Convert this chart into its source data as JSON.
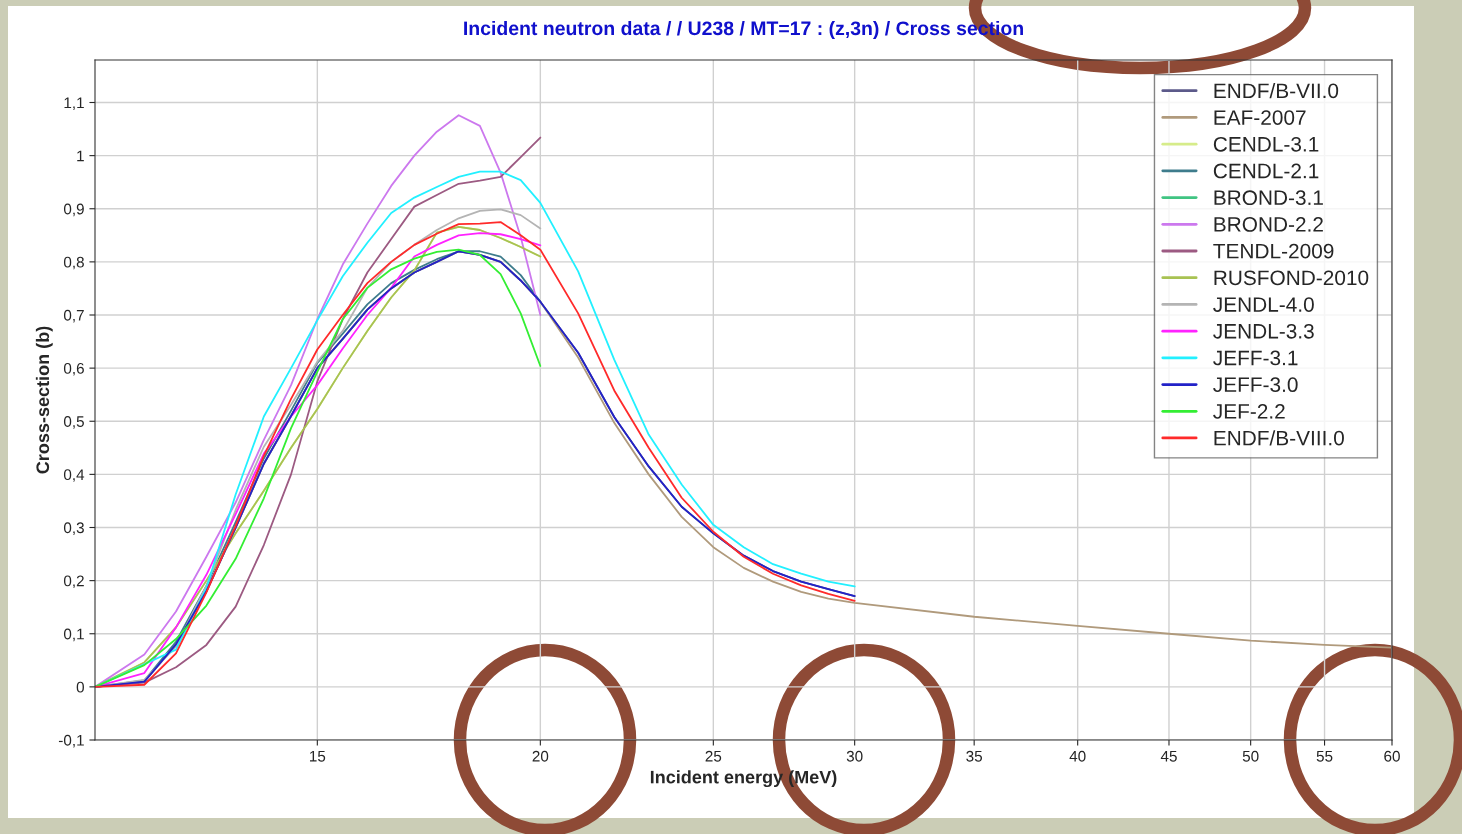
{
  "chart_data": {
    "type": "line",
    "title": "Incident neutron data / / U238 / MT=17 : (z,3n) / Cross section",
    "xlabel": "Incident energy (MeV)",
    "ylabel": "Cross-section (b)",
    "log": "x",
    "grid": true,
    "legend": "top right",
    "line_style": "solid",
    "xlim": [
      11.26,
      60
    ],
    "xticks": [
      15,
      20,
      25,
      30,
      35,
      40,
      45,
      50,
      55,
      60
    ],
    "ylim": [
      -0.1,
      1.18
    ],
    "yticks": [
      {
        "value": -0.1,
        "label": "-0,1"
      },
      0,
      {
        "value": 0.1,
        "label": "0,1"
      },
      {
        "value": 0.2,
        "label": "0,2"
      },
      {
        "value": 0.3,
        "label": "0,3"
      },
      {
        "value": 0.4,
        "label": "0,4"
      },
      {
        "value": 0.5,
        "label": "0,5"
      },
      {
        "value": 0.6,
        "label": "0,6"
      },
      {
        "value": 0.7,
        "label": "0,7"
      },
      {
        "value": 0.8,
        "label": "0,8"
      },
      {
        "value": 0.9,
        "label": "0,9"
      },
      1,
      {
        "value": 1.1,
        "label": "1,1"
      }
    ],
    "x": [
      11.26,
      12,
      12.5,
      13,
      13.5,
      14,
      14.5,
      15,
      15.5,
      16,
      16.5,
      17,
      17.5,
      18,
      18.5,
      19,
      19.5,
      20,
      21,
      22,
      23,
      24,
      25,
      26,
      27,
      28,
      29,
      30
    ],
    "series": [
      {
        "name": "ENDF/B-VII.0",
        "color": "#5c5a8a",
        "values": [
          0,
          0.01,
          0.08,
          0.18,
          0.3,
          0.42,
          0.51,
          0.6,
          0.655,
          0.71,
          0.75,
          0.78,
          0.8,
          0.82,
          0.813,
          0.8,
          0.765,
          0.725,
          0.629,
          0.508,
          0.415,
          0.339,
          0.289,
          0.247,
          0.218,
          0.198,
          0.184,
          0.171
        ]
      },
      {
        "name": "EAF-2007",
        "color": "#b09a7c",
        "x": [
          11.26,
          12,
          12.5,
          13,
          13.5,
          14,
          14.5,
          15,
          15.5,
          16,
          16.5,
          17,
          17.5,
          18,
          18.5,
          19,
          19.5,
          20,
          21,
          22,
          23,
          24,
          25,
          26,
          27,
          28,
          29,
          30,
          35,
          40,
          45,
          50,
          55,
          60
        ],
        "values": [
          0,
          0.01,
          0.08,
          0.18,
          0.3,
          0.42,
          0.51,
          0.6,
          0.655,
          0.71,
          0.75,
          0.78,
          0.8,
          0.82,
          0.813,
          0.8,
          0.765,
          0.725,
          0.62,
          0.497,
          0.4,
          0.32,
          0.263,
          0.224,
          0.198,
          0.179,
          0.166,
          0.158,
          0.132,
          0.115,
          0.1,
          0.087,
          0.079,
          0.074
        ]
      },
      {
        "name": "CENDL-3.1",
        "color": "#d6ec8a",
        "values": [
          0,
          0.046,
          0.112,
          0.2,
          0.289,
          0.369,
          0.45,
          0.523,
          0.6,
          0.67,
          0.733,
          0.784,
          0.855,
          0.866,
          0.86,
          0.845,
          0.828,
          0.81,
          null,
          null,
          null,
          null,
          null,
          null,
          null,
          null,
          null,
          null
        ]
      },
      {
        "name": "CENDL-2.1",
        "color": "#3e7c8c",
        "values": [
          0,
          0.012,
          0.085,
          0.19,
          0.31,
          0.43,
          0.52,
          0.61,
          0.665,
          0.72,
          0.76,
          0.785,
          0.805,
          0.82,
          0.82,
          0.81,
          0.775,
          0.725,
          null,
          null,
          null,
          null,
          null,
          null,
          null,
          null,
          null,
          null
        ]
      },
      {
        "name": "BROND-3.1",
        "color": "#40c482",
        "values": [
          null,
          null,
          null,
          null,
          null,
          null,
          null,
          null,
          null,
          null,
          null,
          null,
          null,
          null,
          null,
          null,
          null,
          null,
          null,
          null,
          null,
          null,
          null,
          null,
          null,
          null,
          null,
          null
        ]
      },
      {
        "name": "BROND-2.2",
        "color": "#cc78ee",
        "values": [
          0,
          0.061,
          0.142,
          0.245,
          0.347,
          0.465,
          0.568,
          0.692,
          0.795,
          0.872,
          0.943,
          1.0,
          1.045,
          1.076,
          1.056,
          0.968,
          0.847,
          0.7,
          null,
          null,
          null,
          null,
          null,
          null,
          null,
          null,
          null,
          null
        ]
      },
      {
        "name": "TENDL-2009",
        "color": "#9c5a82",
        "values": [
          0,
          0.008,
          0.037,
          0.079,
          0.151,
          0.267,
          0.4,
          0.575,
          0.692,
          0.78,
          0.843,
          0.904,
          0.926,
          0.947,
          0.953,
          0.96,
          0.997,
          1.034,
          null,
          null,
          null,
          null,
          null,
          null,
          null,
          null,
          null,
          null
        ]
      },
      {
        "name": "RUSFOND-2010",
        "color": "#a8c252",
        "values": [
          0,
          0.046,
          0.112,
          0.2,
          0.289,
          0.369,
          0.45,
          0.523,
          0.6,
          0.67,
          0.733,
          0.784,
          0.855,
          0.866,
          0.86,
          0.845,
          0.828,
          0.81,
          null,
          null,
          null,
          null,
          null,
          null,
          null,
          null,
          null,
          null
        ]
      },
      {
        "name": "JENDL-4.0",
        "color": "#b4b4b4",
        "values": [
          0,
          0.013,
          0.076,
          0.19,
          0.333,
          0.452,
          0.531,
          0.612,
          0.67,
          0.751,
          0.8,
          0.832,
          0.86,
          0.882,
          0.896,
          0.899,
          0.888,
          0.863,
          null,
          null,
          null,
          null,
          null,
          null,
          null,
          null,
          null,
          null
        ]
      },
      {
        "name": "JENDL-3.3",
        "color": "#ff22ff",
        "values": [
          0,
          0.026,
          0.112,
          0.211,
          0.325,
          0.439,
          0.509,
          0.568,
          0.637,
          0.7,
          0.751,
          0.81,
          0.832,
          0.85,
          0.854,
          0.852,
          0.843,
          0.831,
          null,
          null,
          null,
          null,
          null,
          null,
          null,
          null,
          null,
          null
        ]
      },
      {
        "name": "JEFF-3.1",
        "color": "#22f0ff",
        "values": [
          0,
          null,
          0.07,
          0.186,
          0.362,
          0.509,
          0.6,
          0.69,
          0.773,
          0.836,
          0.892,
          0.921,
          0.941,
          0.96,
          0.97,
          0.97,
          0.954,
          0.911,
          0.782,
          0.616,
          0.475,
          0.381,
          0.305,
          0.263,
          0.231,
          0.213,
          0.198,
          0.189
        ]
      },
      {
        "name": "JEFF-3.0",
        "color": "#2222c8",
        "values": [
          0,
          0.01,
          0.08,
          0.18,
          0.3,
          0.42,
          0.51,
          0.6,
          0.655,
          0.71,
          0.75,
          0.78,
          0.8,
          0.82,
          0.813,
          0.8,
          0.765,
          0.725,
          0.629,
          0.508,
          0.415,
          0.339,
          0.289,
          0.247,
          0.218,
          0.198,
          0.184,
          0.171
        ]
      },
      {
        "name": "JEF-2.2",
        "color": "#33ee33",
        "values": [
          0,
          0.041,
          0.09,
          0.153,
          0.241,
          0.355,
          0.487,
          0.593,
          0.692,
          0.751,
          0.786,
          0.806,
          0.819,
          0.823,
          0.813,
          0.777,
          0.703,
          0.604,
          null,
          null,
          null,
          null,
          null,
          null,
          null,
          null,
          null,
          null
        ]
      },
      {
        "name": "ENDF/B-VIII.0",
        "color": "#ff2a2a",
        "values": [
          0,
          0.004,
          0.063,
          0.178,
          0.303,
          0.435,
          0.542,
          0.635,
          0.7,
          0.76,
          0.8,
          0.832,
          0.853,
          0.871,
          0.872,
          0.875,
          0.85,
          0.823,
          0.703,
          0.558,
          0.45,
          0.356,
          0.292,
          0.245,
          0.213,
          0.191,
          0.175,
          0.162
        ]
      }
    ]
  }
}
